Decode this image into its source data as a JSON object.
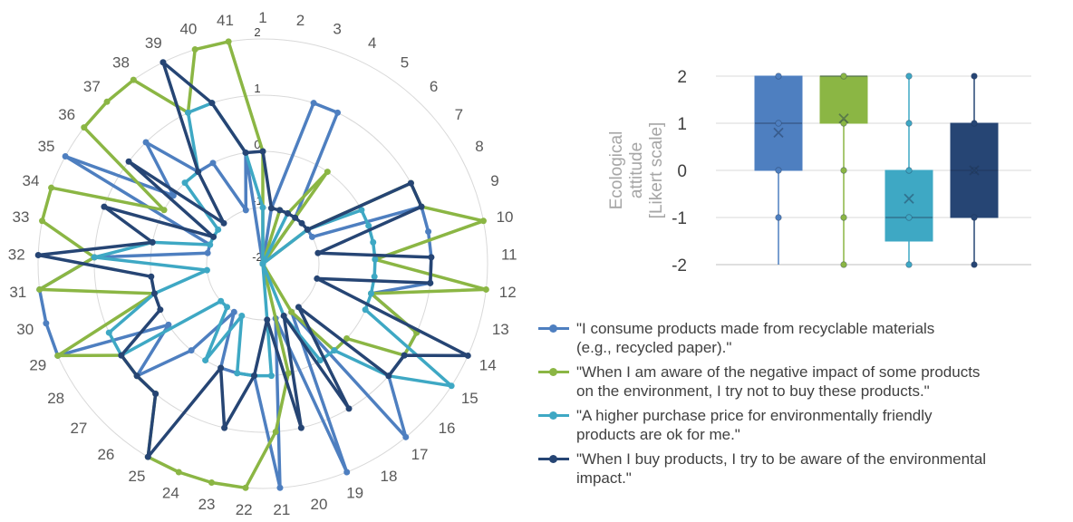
{
  "colors": {
    "series1": "#4e7fc0",
    "series2": "#8bb644",
    "series3": "#3ea8c4",
    "series4": "#264574",
    "grid": "#d9d9d9",
    "text": "#595959"
  },
  "chart_data": [
    {
      "type": "radar",
      "categories": [
        "1",
        "2",
        "3",
        "4",
        "5",
        "6",
        "7",
        "8",
        "9",
        "10",
        "11",
        "12",
        "13",
        "14",
        "15",
        "16",
        "17",
        "18",
        "19",
        "20",
        "21",
        "22",
        "23",
        "24",
        "25",
        "26",
        "27",
        "28",
        "29",
        "30",
        "31",
        "32",
        "33",
        "34",
        "35",
        "36",
        "37",
        "38",
        "39",
        "40",
        "41"
      ],
      "rlim": [
        -2,
        2
      ],
      "rticks": [
        "-2",
        "-1",
        "0",
        "1",
        "2"
      ],
      "series": [
        {
          "name": "\"I consume products made from recyclable materials (e.g., recycled paper).\"",
          "color": "#4e7fc0",
          "values": [
            -2,
            -1,
            1,
            1,
            -1,
            -2,
            -1,
            -1,
            1,
            1,
            1,
            1,
            0,
            1,
            1,
            1,
            2,
            -1,
            2,
            -1,
            2,
            0,
            0,
            0,
            -1,
            0,
            1,
            0,
            2,
            2,
            2,
            1,
            -1,
            -1,
            2,
            0,
            1,
            0,
            0,
            -1,
            0
          ]
        },
        {
          "name": "\"When I am aware of the negative impact of some products on the environment, I try not to buy these products.\"",
          "color": "#8bb644",
          "values": [
            0,
            -2,
            -1,
            -1,
            0,
            -2,
            -1,
            1,
            1,
            2,
            0,
            2,
            0,
            1,
            1,
            0,
            0,
            -1,
            -2,
            0,
            1,
            2,
            2,
            2,
            2,
            1,
            1,
            1,
            2,
            0,
            2,
            1,
            2,
            2,
            0,
            2,
            2,
            2,
            1,
            2,
            2
          ]
        },
        {
          "name": "\"A higher purchase price for environmentally friendly products are ok for me.\"",
          "color": "#3ea8c4",
          "values": [
            -1,
            -2,
            -2,
            -1,
            -2,
            -2,
            -1,
            0,
            0,
            0,
            0,
            0,
            0,
            0,
            2,
            1,
            0,
            0,
            -1,
            -2,
            0,
            0,
            0,
            -1,
            0,
            -1,
            -1,
            1,
            1,
            0,
            -1,
            1,
            0,
            -1,
            -1,
            -1,
            0,
            0,
            1,
            1,
            0
          ]
        },
        {
          "name": "\"When I buy products, I try to be aware of the environmental impact.\"",
          "color": "#264574",
          "values": [
            0,
            -1,
            -1,
            -1,
            -1,
            -1,
            -1,
            1,
            1,
            -1,
            1,
            1,
            -1,
            2,
            1,
            1,
            -1,
            1,
            -1,
            1,
            -1,
            0,
            1,
            0,
            2,
            1,
            1,
            1,
            0,
            0,
            0,
            2,
            0,
            1,
            -1,
            1,
            -1,
            0,
            2,
            1,
            0
          ]
        }
      ]
    },
    {
      "type": "box",
      "ylabel": "Ecological\nattitude\n[Likert scale]",
      "ylim": [
        -2,
        2
      ],
      "yticks": [
        "-2",
        "-1",
        "0",
        "1",
        "2"
      ],
      "boxes": [
        {
          "color": "#4e7fc0",
          "min": -2,
          "q1": 0,
          "median": 1,
          "q3": 2,
          "max": 2,
          "mean": 0.8,
          "points": [
            -1,
            0,
            1,
            2
          ]
        },
        {
          "color": "#8bb644",
          "min": -2,
          "q1": 1,
          "median": 2,
          "q3": 2,
          "max": 2,
          "mean": 1.1,
          "points": [
            -2,
            -1,
            0,
            1,
            2
          ]
        },
        {
          "color": "#3ea8c4",
          "min": -2,
          "q1": -1.5,
          "median": -1,
          "q3": 0,
          "max": 2,
          "mean": -0.6,
          "points": [
            -2,
            -1,
            0,
            1,
            2
          ]
        },
        {
          "color": "#264574",
          "min": -2,
          "q1": -1,
          "median": 0,
          "q3": 1,
          "max": 2,
          "mean": 0,
          "points": [
            -2,
            -1,
            0,
            1,
            2
          ]
        }
      ]
    }
  ],
  "legend": {
    "items": [
      {
        "text": "\"I consume products made from recyclable materials\n(e.g., recycled paper).\"",
        "color": "#4e7fc0"
      },
      {
        "text": "\"When I am aware of the negative impact of some products\non the environment, I try not to buy these products.\"",
        "color": "#8bb644"
      },
      {
        "text": "\"A higher purchase price for environmentally friendly\nproducts are ok for me.\"",
        "color": "#3ea8c4"
      },
      {
        "text": "\"When I buy products, I try to be aware of the environmental\nimpact.\"",
        "color": "#264574"
      }
    ]
  }
}
